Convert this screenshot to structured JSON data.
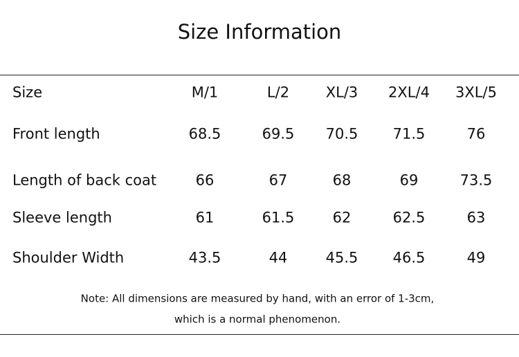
{
  "title": "Size Information",
  "table": {
    "header": [
      "Size",
      "M/1",
      "L/2",
      "XL/3",
      "2XL/4",
      "3XL/5"
    ],
    "rows": [
      [
        "Front length",
        "68.5",
        "69.5",
        "70.5",
        "71.5",
        "76"
      ],
      [
        "Length of back coat",
        "66",
        "67",
        "68",
        "69",
        "73.5"
      ],
      [
        "Sleeve length",
        "61",
        "61.5",
        "62",
        "62.5",
        "63"
      ],
      [
        "Shoulder Width",
        "43.5",
        "44",
        "45.5",
        "46.5",
        "49"
      ]
    ]
  },
  "note": {
    "lines": [
      "Note: All dimensions are measured by hand, with an error of 1-3cm,",
      "which is a normal phenomenon."
    ]
  }
}
